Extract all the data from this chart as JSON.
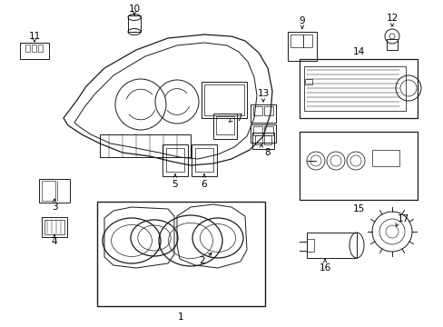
{
  "bg_color": "#ffffff",
  "line_color": "#1a1a1a",
  "fig_width": 4.89,
  "fig_height": 3.6,
  "dpi": 100,
  "gray": "#888888",
  "darkgray": "#555555"
}
